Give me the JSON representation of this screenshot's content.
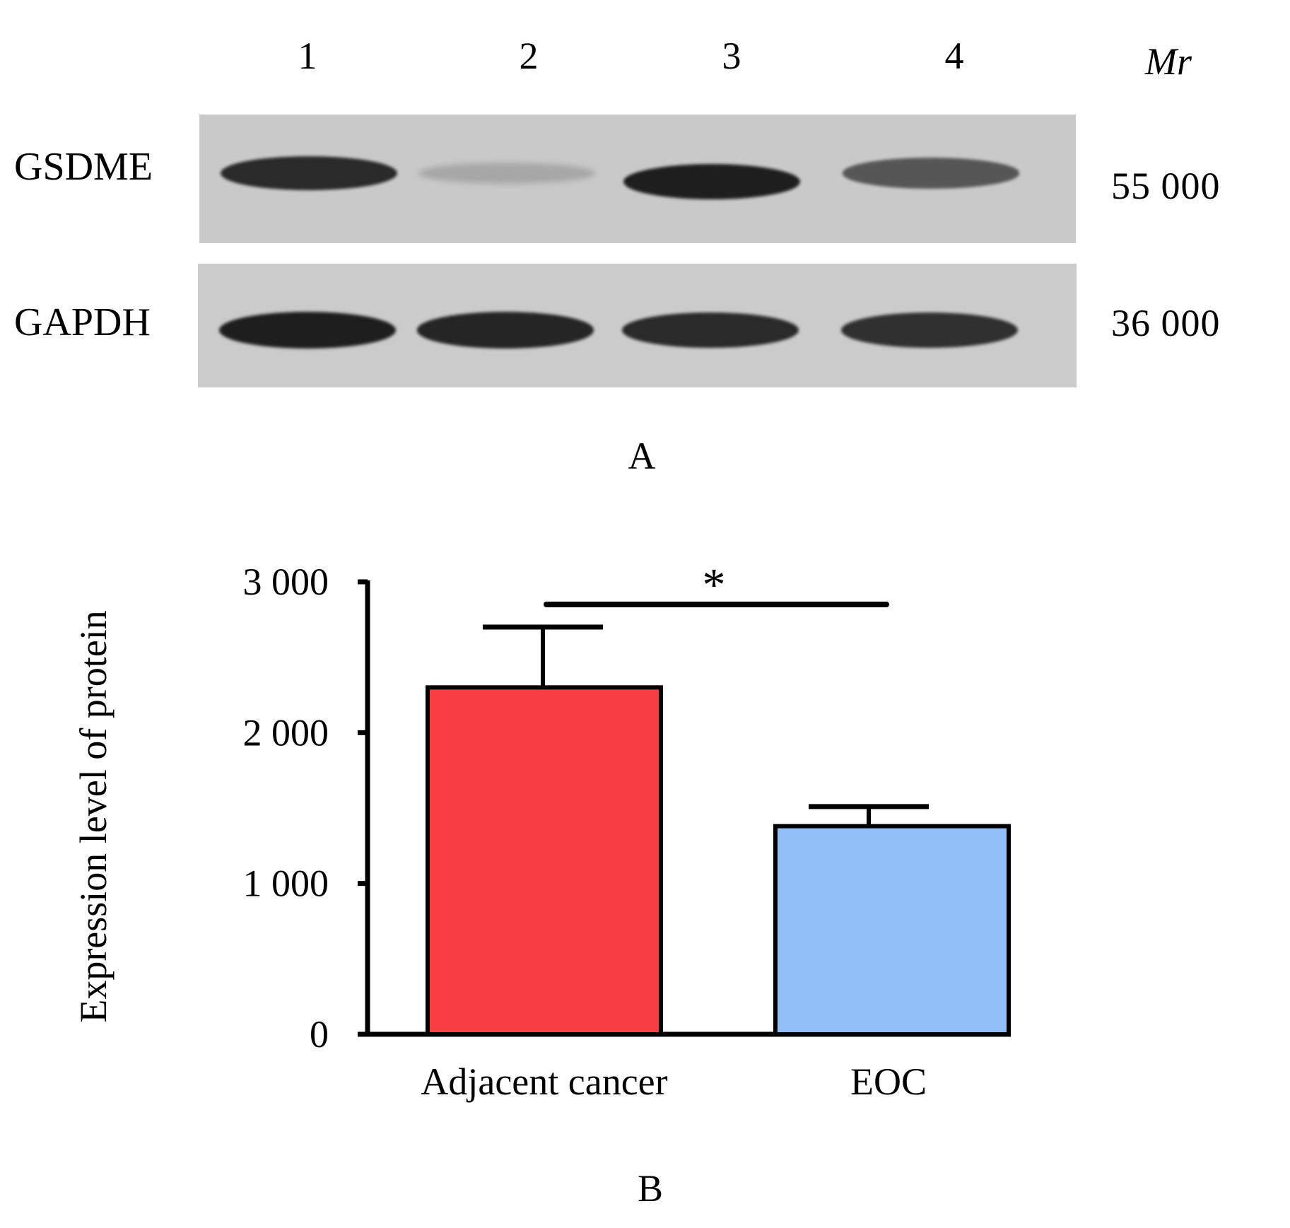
{
  "panel_a": {
    "label": "A",
    "lanes": [
      "1",
      "2",
      "3",
      "4"
    ],
    "mr_header": "Mr",
    "rows": [
      {
        "protein": "GSDME",
        "mr": "55 000",
        "band_intensity": [
          0.95,
          0.25,
          1.0,
          0.75
        ]
      },
      {
        "protein": "GAPDH",
        "mr": "36 000",
        "band_intensity": [
          1.0,
          0.97,
          0.95,
          0.93
        ]
      }
    ]
  },
  "panel_b": {
    "label": "B"
  },
  "chart_data": {
    "type": "bar",
    "categories": [
      "Adjacent cancer",
      "EOC"
    ],
    "values": [
      2300,
      1380
    ],
    "error": [
      400,
      130
    ],
    "colors": [
      "#f73e42",
      "#91bff8"
    ],
    "ylabel": "Expression level of protein",
    "xlabel": "",
    "ylim": [
      0,
      3000
    ],
    "yticks": [
      0,
      1000,
      2000,
      3000
    ],
    "ytick_labels": [
      "0",
      "1 000",
      "2 000",
      "3 000"
    ],
    "significance": {
      "between": [
        "Adjacent cancer",
        "EOC"
      ],
      "label": "*"
    },
    "grid": false,
    "legend": "none"
  }
}
